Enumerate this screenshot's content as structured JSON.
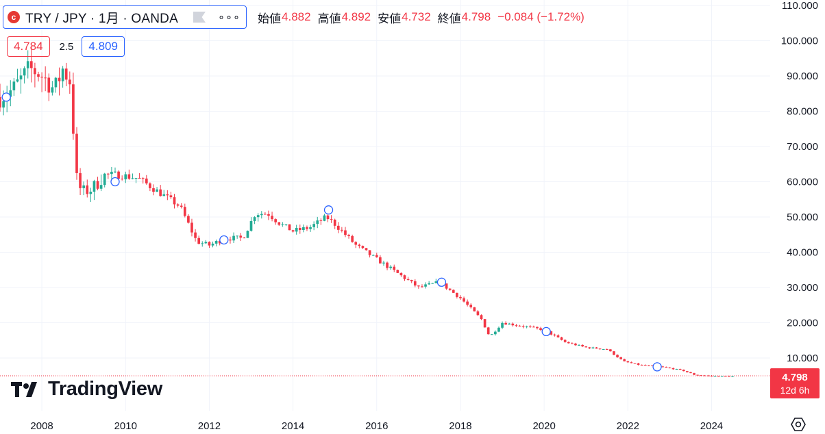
{
  "header": {
    "symbol_title": "TRY / JPY · 1月 · OANDA",
    "logo_glyph": "c",
    "more_glyph": "∘∘∘",
    "ohlc": {
      "open_label": "始値",
      "open_value": "4.882",
      "high_label": "高値",
      "high_value": "4.892",
      "low_label": "安値",
      "low_value": "4.732",
      "close_label": "終値",
      "close_value": "4.798",
      "change": "−0.084 (−1.72%)"
    }
  },
  "quote": {
    "bid": "4.784",
    "spread": "2.5",
    "ask": "4.809"
  },
  "price_tag": {
    "price": "4.798",
    "countdown": "12d 6h"
  },
  "brand": {
    "name": "TradingView"
  },
  "icons": [
    "flag-icon",
    "more-icon",
    "settings-icon",
    "tradingview-logo-icon"
  ],
  "colors": {
    "up": "#22ab94",
    "down": "#f23645",
    "accent": "#2962ff"
  },
  "chart_data": {
    "type": "candlestick",
    "interval": "1M",
    "y_axis": {
      "range": [
        0,
        110
      ],
      "ticks": [
        10,
        20,
        30,
        40,
        50,
        60,
        70,
        80,
        90,
        100,
        110
      ],
      "tick_labels": [
        "10.000",
        "20.000",
        "30.000",
        "40.000",
        "50.000",
        "60.000",
        "70.000",
        "80.000",
        "90.000",
        "100.000",
        "110.000"
      ]
    },
    "x_axis": {
      "range": [
        2007.0,
        2025.4
      ],
      "ticks": [
        2008,
        2010,
        2012,
        2014,
        2016,
        2018,
        2020,
        2022,
        2024
      ],
      "tick_labels": [
        "2008",
        "2010",
        "2012",
        "2014",
        "2016",
        "2018",
        "2020",
        "2022",
        "2024"
      ]
    },
    "grid": true,
    "last_price": 4.798,
    "close_path": [
      [
        2007.0,
        84
      ],
      [
        2007.3,
        86
      ],
      [
        2007.7,
        92
      ],
      [
        2007.9,
        91
      ],
      [
        2008.1,
        89
      ],
      [
        2008.3,
        86
      ],
      [
        2008.5,
        92
      ],
      [
        2008.7,
        88
      ],
      [
        2008.8,
        62
      ],
      [
        2008.95,
        57
      ],
      [
        2009.2,
        58
      ],
      [
        2009.5,
        62
      ],
      [
        2009.8,
        62
      ],
      [
        2010.3,
        61
      ],
      [
        2010.8,
        57
      ],
      [
        2011.3,
        53
      ],
      [
        2011.7,
        43
      ],
      [
        2012.0,
        42
      ],
      [
        2012.4,
        44
      ],
      [
        2012.8,
        44
      ],
      [
        2013.1,
        51
      ],
      [
        2013.4,
        51
      ],
      [
        2013.7,
        48
      ],
      [
        2014.0,
        46
      ],
      [
        2014.4,
        47
      ],
      [
        2014.8,
        50
      ],
      [
        2015.0,
        48
      ],
      [
        2015.5,
        42
      ],
      [
        2016.0,
        38
      ],
      [
        2016.5,
        34
      ],
      [
        2017.0,
        30
      ],
      [
        2017.5,
        31.5
      ],
      [
        2018.0,
        27
      ],
      [
        2018.5,
        21
      ],
      [
        2018.7,
        16
      ],
      [
        2019.0,
        20
      ],
      [
        2019.5,
        19
      ],
      [
        2020.0,
        18
      ],
      [
        2020.5,
        14.5
      ],
      [
        2021.0,
        13
      ],
      [
        2021.5,
        12.5
      ],
      [
        2021.9,
        9
      ],
      [
        2022.3,
        8
      ],
      [
        2022.8,
        7.5
      ],
      [
        2023.3,
        6.5
      ],
      [
        2023.6,
        5.2
      ],
      [
        2024.0,
        4.9
      ],
      [
        2024.5,
        4.8
      ]
    ],
    "event_markers": [
      [
        2007.15,
        84
      ],
      [
        2009.75,
        60
      ],
      [
        2012.35,
        43.5
      ],
      [
        2014.85,
        52
      ],
      [
        2017.55,
        31.5
      ],
      [
        2020.05,
        17.5
      ],
      [
        2022.7,
        7.5
      ]
    ]
  }
}
